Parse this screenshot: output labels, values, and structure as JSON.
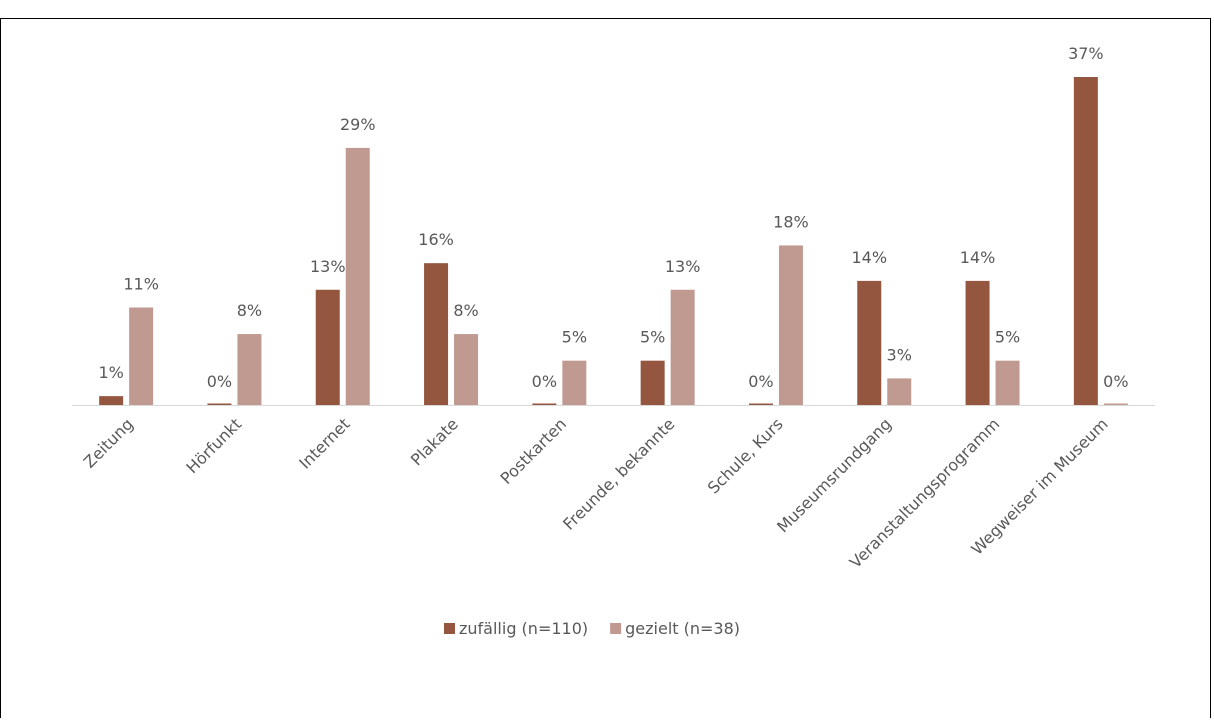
{
  "chart_data": {
    "type": "bar",
    "categories": [
      "Zeitung",
      "Hörfunkt",
      "Internet",
      "Plakate",
      "Postkarten",
      "Freunde, bekannte",
      "Schule, Kurs",
      "Museumsrundgang",
      "Veranstaltungsprogramm",
      "Wegweiser im Museum"
    ],
    "series": [
      {
        "name": "zufällig (n=110)",
        "color": "#955640",
        "values": [
          1,
          0,
          13,
          16,
          0,
          5,
          0,
          14,
          14,
          37
        ],
        "value_labels": [
          "1%",
          "0%",
          "13%",
          "16%",
          "0%",
          "5%",
          "0%",
          "14%",
          "14%",
          "37%"
        ]
      },
      {
        "name": "gezielt (n=38)",
        "color": "#c09a90",
        "values": [
          11,
          8,
          29,
          8,
          5,
          13,
          18,
          3,
          5,
          0
        ],
        "value_labels": [
          "11%",
          "8%",
          "29%",
          "8%",
          "5%",
          "13%",
          "18%",
          "3%",
          "5%",
          "0%"
        ]
      }
    ],
    "ylim": [
      0,
      37
    ],
    "legend": "bottom"
  }
}
